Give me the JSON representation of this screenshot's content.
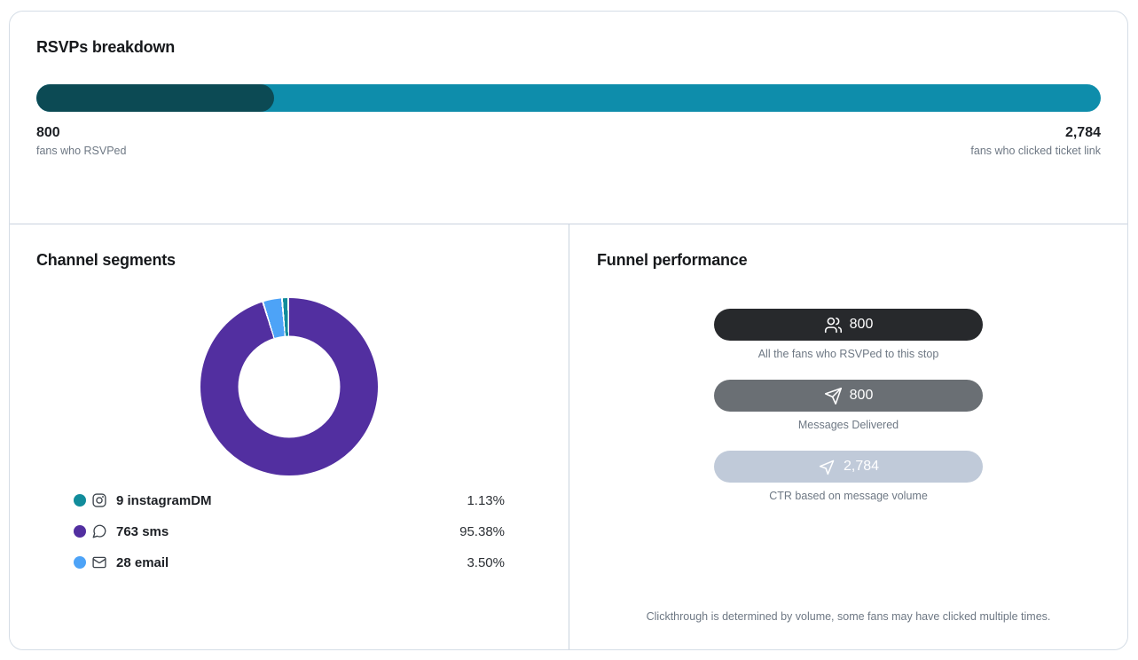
{
  "rsvp_breakdown": {
    "title": "RSVPs breakdown",
    "left": {
      "value": "800",
      "label": "fans who RSVPed"
    },
    "right": {
      "value": "2,784",
      "label": "fans who clicked ticket link"
    },
    "bar": {
      "filled_percent": "22.32%",
      "fill_color": "#0c4a54",
      "track_color": "#0e8dab"
    }
  },
  "channel_segments": {
    "title": "Channel segments",
    "donut_draw_order": [
      1,
      2,
      0
    ],
    "items": [
      {
        "count": 9,
        "channel": "instagramDM",
        "label": "9 instagramDM",
        "percent": "1.13%",
        "color": "#118c9b",
        "icon": "instagram-icon"
      },
      {
        "count": 763,
        "channel": "sms",
        "label": "763 sms",
        "percent": "95.38%",
        "color": "#522fa0",
        "icon": "chat-bubble-icon"
      },
      {
        "count": 28,
        "channel": "email",
        "label": "28 email",
        "percent": "3.50%",
        "color": "#4da3f7",
        "icon": "mail-icon"
      }
    ]
  },
  "funnel_performance": {
    "title": "Funnel performance",
    "stages": [
      {
        "value": "800",
        "caption": "All the fans who RSVPed to this stop",
        "color": "#27292c",
        "icon": "users-icon"
      },
      {
        "value": "800",
        "caption": "Messages Delivered",
        "color": "#6a6f74",
        "icon": "send-icon"
      },
      {
        "value": "2,784",
        "caption": "CTR based on message volume",
        "color": "#c0cad9",
        "icon": "cursor-click-icon"
      }
    ],
    "footnote": "Clickthrough is determined by volume, some fans may have clicked multiple times."
  },
  "chart_data": [
    {
      "type": "bar",
      "subtype": "horizontal-stacked-progress",
      "title": "RSVPs breakdown",
      "series": [
        {
          "name": "fans who RSVPed",
          "values": [
            800
          ],
          "color": "#0c4a54"
        },
        {
          "name": "fans who clicked ticket link",
          "values": [
            2784
          ],
          "color": "#0e8dab"
        }
      ],
      "total": 3584,
      "grid": false
    },
    {
      "type": "pie",
      "subtype": "donut",
      "title": "Channel segments",
      "categories": [
        "instagramDM",
        "sms",
        "email"
      ],
      "values": [
        9,
        763,
        28
      ],
      "percents": [
        1.13,
        95.38,
        3.5
      ],
      "colors": [
        "#118c9b",
        "#522fa0",
        "#4da3f7"
      ],
      "legend_position": "below",
      "start_angle_deg": 0,
      "direction": "clockwise"
    },
    {
      "type": "bar",
      "subtype": "funnel",
      "title": "Funnel performance",
      "categories": [
        "All the fans who RSVPed to this stop",
        "Messages Delivered",
        "CTR based on message volume"
      ],
      "values": [
        800,
        800,
        2784
      ],
      "colors": [
        "#27292c",
        "#6a6f74",
        "#c0cad9"
      ]
    }
  ]
}
